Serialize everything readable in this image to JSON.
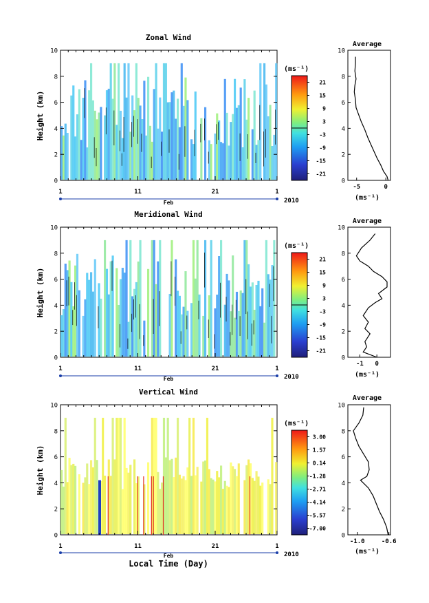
{
  "chart_data": [
    {
      "type": "heatmap",
      "title": "Zonal Wind",
      "ylabel": "Height (km)",
      "xlabel": "",
      "ylim": [
        0,
        10
      ],
      "yticks": [
        "0",
        "2",
        "4",
        "6",
        "8",
        "10"
      ],
      "xticks": [
        "1",
        "11",
        "21",
        "1"
      ],
      "month_label": "Feb",
      "year_label": "2010",
      "colorbar": {
        "unit": "(ms⁻¹)",
        "ticks": [
          "21",
          "15",
          "9",
          "3",
          "-3",
          "-9",
          "-15",
          "-21"
        ],
        "range": [
          -24,
          24
        ],
        "zero_line": true
      },
      "average": {
        "title": "Average",
        "xticks": [
          "-5",
          "0"
        ],
        "xlim": [
          -6.5,
          0.8
        ],
        "unit": "(ms⁻¹)",
        "profile": [
          [
            0.4,
            0.0
          ],
          [
            0.2,
            0.3
          ],
          [
            -0.4,
            0.7
          ],
          [
            -0.9,
            1.2
          ],
          [
            -1.5,
            1.7
          ],
          [
            -2.0,
            2.2
          ],
          [
            -2.6,
            2.8
          ],
          [
            -3.1,
            3.3
          ],
          [
            -3.6,
            3.9
          ],
          [
            -4.2,
            4.5
          ],
          [
            -4.7,
            5.1
          ],
          [
            -5.1,
            5.6
          ],
          [
            -5.2,
            6.2
          ],
          [
            -5.4,
            6.8
          ],
          [
            -5.3,
            7.3
          ],
          [
            -5.1,
            7.8
          ],
          [
            -5.3,
            8.4
          ],
          [
            -5.2,
            9.0
          ],
          [
            -5.2,
            9.5
          ]
        ]
      }
    },
    {
      "type": "heatmap",
      "title": "Meridional Wind",
      "ylabel": "Height (km)",
      "xlabel": "",
      "ylim": [
        0,
        10
      ],
      "yticks": [
        "0",
        "2",
        "4",
        "6",
        "8",
        "10"
      ],
      "xticks": [
        "1",
        "11",
        "21",
        "1"
      ],
      "month_label": "Feb",
      "year_label": "2010",
      "colorbar": {
        "unit": "(ms⁻¹)",
        "ticks": [
          "21",
          "15",
          "9",
          "3",
          "-3",
          "-9",
          "-15",
          "-21"
        ],
        "range": [
          -24,
          24
        ],
        "zero_line": true
      },
      "average": {
        "title": "Average",
        "xticks": [
          "-1",
          "0"
        ],
        "xlim": [
          -1.7,
          0.8
        ],
        "unit": "(ms⁻¹)",
        "profile": [
          [
            0.0,
            0.0
          ],
          [
            -0.8,
            0.4
          ],
          [
            -0.6,
            0.8
          ],
          [
            -0.7,
            1.2
          ],
          [
            -0.4,
            1.8
          ],
          [
            -0.7,
            2.2
          ],
          [
            -0.5,
            2.7
          ],
          [
            -0.8,
            3.2
          ],
          [
            -0.5,
            3.8
          ],
          [
            -0.1,
            4.2
          ],
          [
            0.3,
            4.5
          ],
          [
            0.1,
            4.9
          ],
          [
            0.6,
            5.4
          ],
          [
            0.6,
            5.8
          ],
          [
            0.3,
            6.2
          ],
          [
            -0.2,
            6.6
          ],
          [
            -0.5,
            7.0
          ],
          [
            -1.0,
            7.4
          ],
          [
            -1.2,
            7.8
          ],
          [
            -0.9,
            8.4
          ],
          [
            -0.4,
            9.0
          ],
          [
            -0.1,
            9.5
          ]
        ]
      }
    },
    {
      "type": "heatmap",
      "title": "Vertical Wind",
      "ylabel": "Height (km)",
      "xlabel": "Local Time (Day)",
      "ylim": [
        0,
        10
      ],
      "yticks": [
        "0",
        "2",
        "4",
        "6",
        "8",
        "10"
      ],
      "xticks": [
        "1",
        "11",
        "21",
        "1"
      ],
      "month_label": "Feb",
      "year_label": "2010",
      "colorbar": {
        "unit": "(ms⁻¹)",
        "ticks": [
          "3.00",
          "1.57",
          "0.14",
          "-1.28",
          "-2.71",
          "-4.14",
          "-5.57",
          "-7.00"
        ],
        "range": [
          -7.0,
          3.0
        ],
        "zero_line": false
      },
      "average": {
        "title": "Average",
        "xticks": [
          "-1.0",
          "-0.6"
        ],
        "xlim": [
          -1.12,
          -0.58
        ],
        "unit": "(ms⁻¹)",
        "profile": [
          [
            -0.61,
            0.0
          ],
          [
            -0.63,
            0.6
          ],
          [
            -0.67,
            1.2
          ],
          [
            -0.72,
            1.8
          ],
          [
            -0.76,
            2.4
          ],
          [
            -0.8,
            3.0
          ],
          [
            -0.86,
            3.6
          ],
          [
            -0.96,
            4.2
          ],
          [
            -0.88,
            4.5
          ],
          [
            -0.85,
            5.0
          ],
          [
            -0.86,
            5.6
          ],
          [
            -0.92,
            6.2
          ],
          [
            -0.98,
            6.8
          ],
          [
            -1.02,
            7.4
          ],
          [
            -1.05,
            8.0
          ],
          [
            -0.98,
            8.6
          ],
          [
            -0.93,
            9.2
          ],
          [
            -0.92,
            9.8
          ]
        ]
      }
    }
  ]
}
